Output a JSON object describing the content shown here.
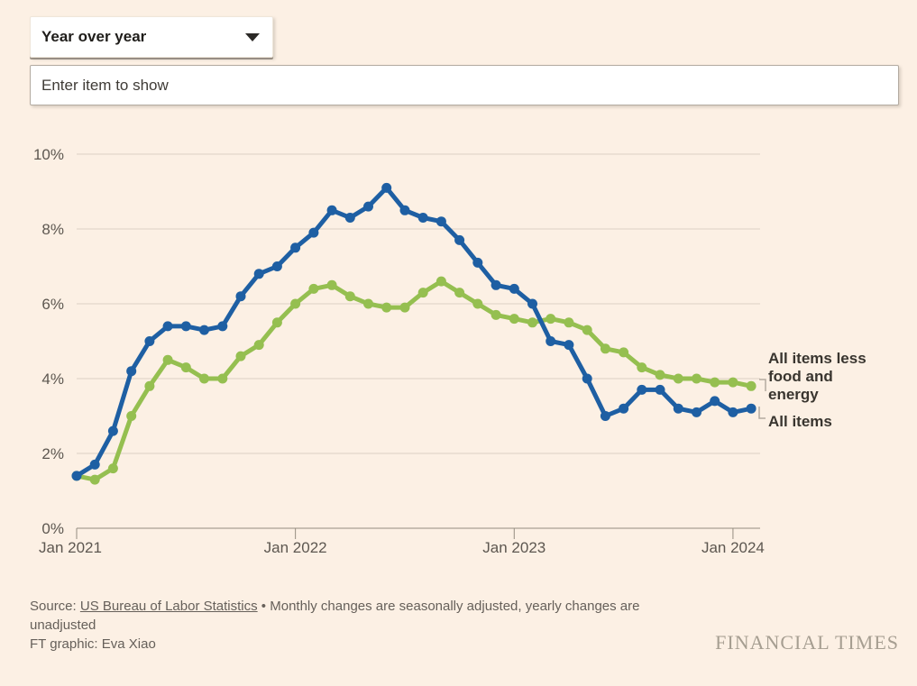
{
  "controls": {
    "metric_dropdown": {
      "value": "Year over year",
      "icon": "chevron-down-icon"
    },
    "item_input": {
      "value": "",
      "placeholder": "Enter item to show"
    }
  },
  "chart_data": {
    "type": "line",
    "title": "",
    "xlabel": "",
    "ylabel": "",
    "ylim": [
      0,
      10
    ],
    "grid": "horizontal",
    "x_unit": "month",
    "x_range": [
      "Jan 2021",
      "Feb 2024"
    ],
    "x_tick_labels": [
      "Jan 2021",
      "Jan 2022",
      "Jan 2023",
      "Jan 2024"
    ],
    "x_tick_month_index": [
      0,
      12,
      24,
      36
    ],
    "y_tick_labels": [
      "0%",
      "2%",
      "4%",
      "6%",
      "8%",
      "10%"
    ],
    "legend_position": "end-of-line-labels",
    "months": [
      "Jan 2021",
      "Feb 2021",
      "Mar 2021",
      "Apr 2021",
      "May 2021",
      "Jun 2021",
      "Jul 2021",
      "Aug 2021",
      "Sep 2021",
      "Oct 2021",
      "Nov 2021",
      "Dec 2021",
      "Jan 2022",
      "Feb 2022",
      "Mar 2022",
      "Apr 2022",
      "May 2022",
      "Jun 2022",
      "Jul 2022",
      "Aug 2022",
      "Sep 2022",
      "Oct 2022",
      "Nov 2022",
      "Dec 2022",
      "Jan 2023",
      "Feb 2023",
      "Mar 2023",
      "Apr 2023",
      "May 2023",
      "Jun 2023",
      "Jul 2023",
      "Aug 2023",
      "Sep 2023",
      "Oct 2023",
      "Nov 2023",
      "Dec 2023",
      "Jan 2024",
      "Feb 2024"
    ],
    "series": [
      {
        "name": "All items less food and energy",
        "color": "#95bf50",
        "values": [
          1.4,
          1.3,
          1.6,
          3.0,
          3.8,
          4.5,
          4.3,
          4.0,
          4.0,
          4.6,
          4.9,
          5.5,
          6.0,
          6.4,
          6.5,
          6.2,
          6.0,
          5.9,
          5.9,
          6.3,
          6.6,
          6.3,
          6.0,
          5.7,
          5.6,
          5.5,
          5.6,
          5.5,
          5.3,
          4.8,
          4.7,
          4.3,
          4.1,
          4.0,
          4.0,
          3.9,
          3.9,
          3.8
        ]
      },
      {
        "name": "All items",
        "color": "#1e5fa3",
        "values": [
          1.4,
          1.7,
          2.6,
          4.2,
          5.0,
          5.4,
          5.4,
          5.3,
          5.4,
          6.2,
          6.8,
          7.0,
          7.5,
          7.9,
          8.5,
          8.3,
          8.6,
          9.1,
          8.5,
          8.3,
          8.2,
          7.7,
          7.1,
          6.5,
          6.4,
          6.0,
          5.0,
          4.9,
          4.0,
          3.0,
          3.2,
          3.7,
          3.7,
          3.2,
          3.1,
          3.4,
          3.1,
          3.2
        ]
      }
    ]
  },
  "footer": {
    "source_prefix": "Source: ",
    "source_link": "US Bureau of Labor Statistics",
    "source_rest": " • Monthly changes are seasonally adjusted, yearly changes are unadjusted",
    "credit": "FT graphic: Eva Xiao",
    "wordmark": "FINANCIAL TIMES"
  },
  "colors": {
    "background": "#fcf0e4",
    "gridline": "#ddd1c4",
    "axis": "#958d80",
    "tick_label": "#5d5750",
    "series_green": "#95bf50",
    "series_blue": "#1e5fa3",
    "annotation_text": "#39352f",
    "leader_bracket": "#b3aba0"
  }
}
